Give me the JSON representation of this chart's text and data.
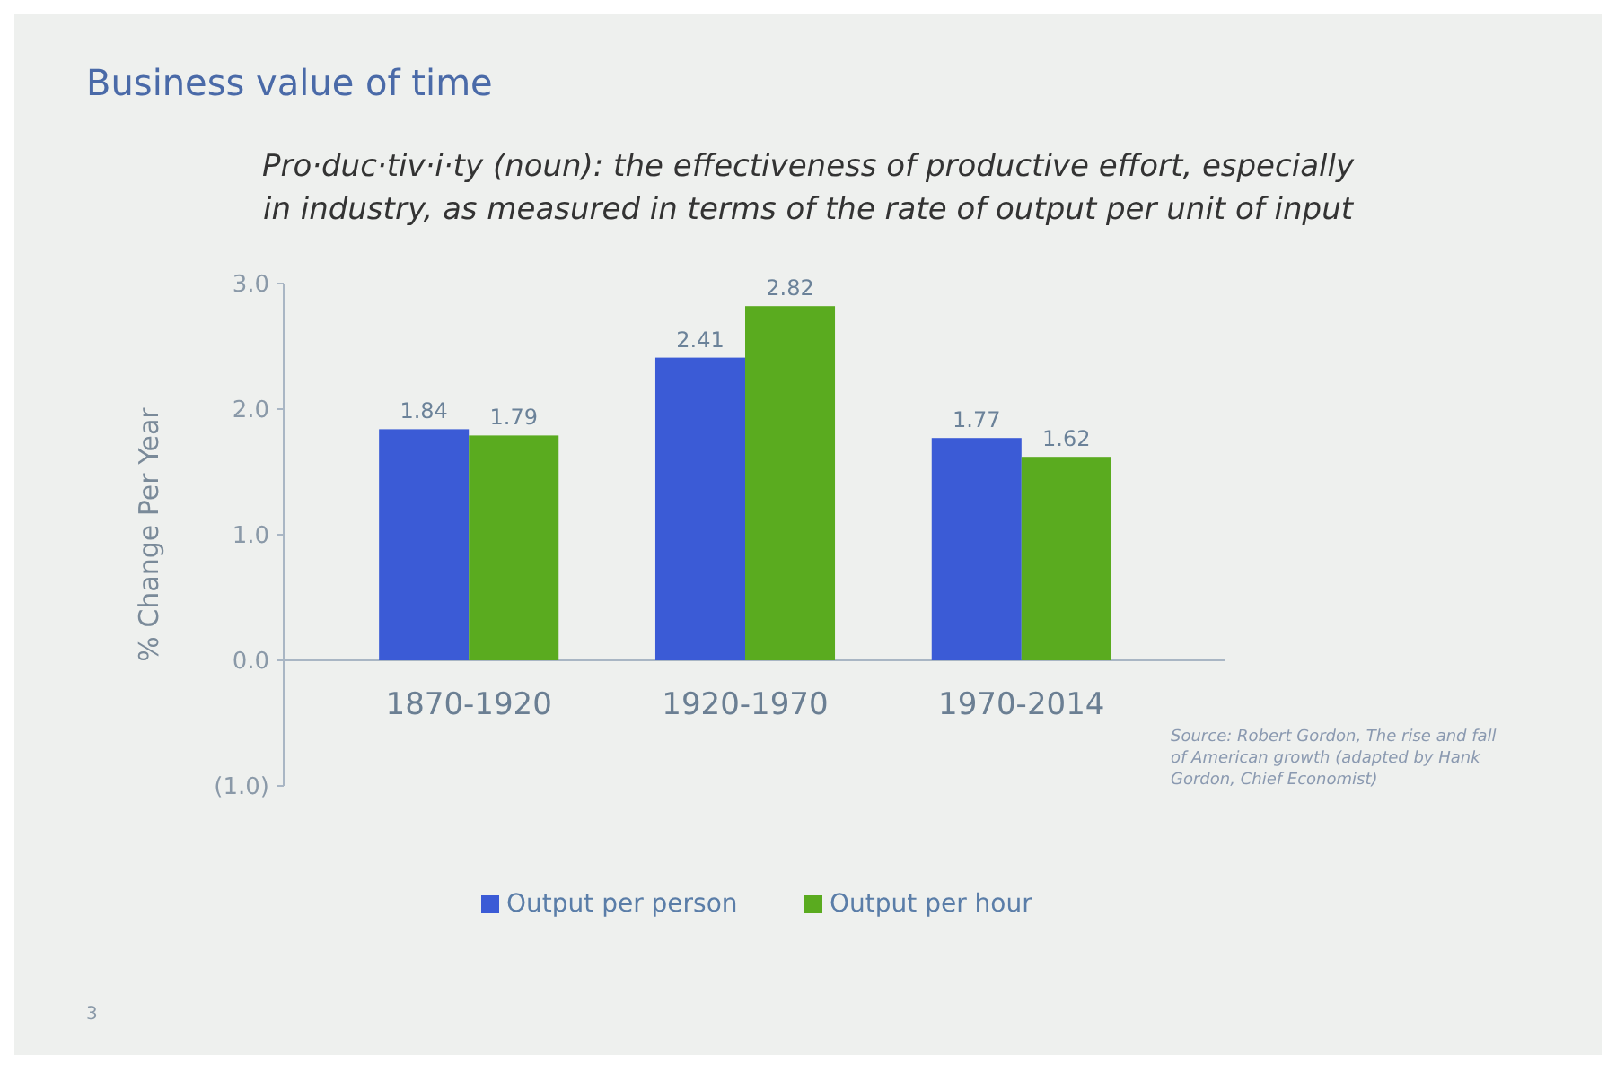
{
  "chart_data": {
    "type": "bar",
    "title": "Business value of time",
    "subtitle": "Pro·duc·tiv·i·ty (noun): the effectiveness of productive effort, especially in industry, as measured in terms of the rate of output per unit of input",
    "ylabel": "% Change Per Year",
    "categories": [
      "1870-1920",
      "1920-1970",
      "1970-2014"
    ],
    "series": [
      {
        "name": "Output per person",
        "color": "#3b5bd6",
        "values": [
          1.84,
          2.41,
          1.77
        ]
      },
      {
        "name": "Output per hour",
        "color": "#5aab1f",
        "values": [
          1.79,
          2.82,
          1.62
        ]
      }
    ],
    "ylim": [
      -1,
      3
    ],
    "yticks": [
      {
        "value": 3,
        "label": "3.0"
      },
      {
        "value": 2,
        "label": "2.0"
      },
      {
        "value": 1,
        "label": "1.0"
      },
      {
        "value": 0,
        "label": "0.0"
      },
      {
        "value": -1,
        "label": "(1.0)"
      }
    ],
    "data_labels": true,
    "grid": false,
    "legend": "bottom",
    "annotations": [
      "Source: Robert Gordon, The rise and fall of American growth (adapted by Hank Gordon, Chief Economist)",
      "3"
    ]
  }
}
